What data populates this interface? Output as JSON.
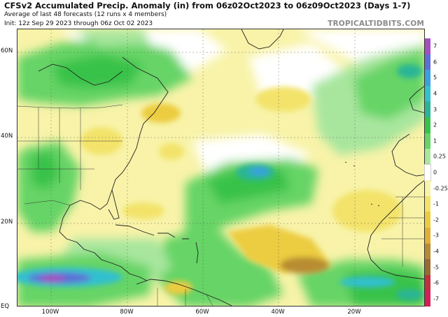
{
  "header": {
    "title": "CFSv2 Accumulated Precip. Anomaly (in) from 06z02Oct2023 to 06z09Oct2023 (Days 1-7)",
    "subtitle": "Average of last 48 forecasts (12 runs x 4 members)",
    "init": "Init: 12z Sep 29 2023 through 06z Oct 02 2023",
    "brand": "TROPICALTIDBITS.COM"
  },
  "axes": {
    "lat_labels": [
      {
        "label": "60N",
        "lat": 60
      },
      {
        "label": "40N",
        "lat": 40
      },
      {
        "label": "20N",
        "lat": 20
      },
      {
        "label": "EQ",
        "lat": 0
      }
    ],
    "lon_labels": [
      {
        "label": "100W",
        "lon": -100
      },
      {
        "label": "80W",
        "lon": -80
      },
      {
        "label": "60W",
        "lon": -60
      },
      {
        "label": "40W",
        "lon": -40
      },
      {
        "label": "20W",
        "lon": -20
      }
    ]
  },
  "colorbar": {
    "levels": [
      {
        "label": "7",
        "color": "#a64fbf"
      },
      {
        "label": "6",
        "color": "#5d6fd6"
      },
      {
        "label": "5",
        "color": "#3aa0e0"
      },
      {
        "label": "4",
        "color": "#33c0cf"
      },
      {
        "label": "3",
        "color": "#2bb596"
      },
      {
        "label": "2",
        "color": "#39c24a"
      },
      {
        "label": "1",
        "color": "#66d466"
      },
      {
        "label": "0.25",
        "color": "#a8e69e"
      },
      {
        "label": "0",
        "color": "#ffffff"
      },
      {
        "label": "-0.25",
        "color": "#f8f3a8"
      },
      {
        "label": "-1",
        "color": "#f3e36a"
      },
      {
        "label": "-2",
        "color": "#eccc3f"
      },
      {
        "label": "-3",
        "color": "#dfb035"
      },
      {
        "label": "-4",
        "color": "#b88c33"
      },
      {
        "label": "-5",
        "color": "#9a6a33"
      },
      {
        "label": "-6",
        "color": "#c0303c"
      },
      {
        "label": "-7",
        "color": "#d0205a"
      }
    ]
  }
}
